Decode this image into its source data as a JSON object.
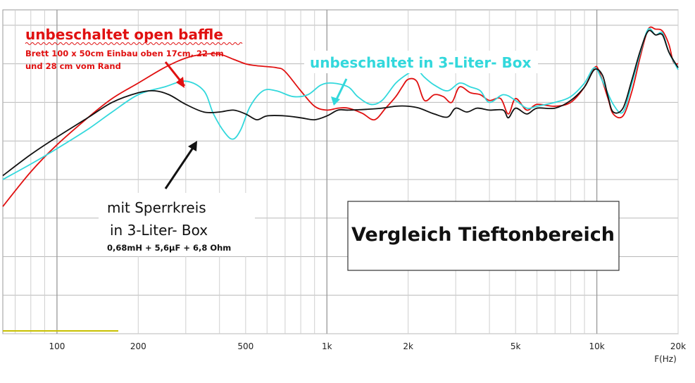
{
  "chart_data": {
    "type": "line",
    "title": "Vergleich Tieftonbereich",
    "xlabel": "F(Hz)",
    "x_scale": "log",
    "xlim": [
      63,
      20000
    ],
    "x_ticks": [
      {
        "value": 100,
        "label": "100"
      },
      {
        "value": 200,
        "label": "200"
      },
      {
        "value": 500,
        "label": "500"
      },
      {
        "value": 1000,
        "label": "1k"
      },
      {
        "value": 2000,
        "label": "2k"
      },
      {
        "value": 5000,
        "label": "5k"
      },
      {
        "value": 10000,
        "label": "10k"
      },
      {
        "value": 20000,
        "label": "20k"
      }
    ],
    "ylim": [
      0,
      8.4
    ],
    "grid": true,
    "series": [
      {
        "name": "unbeschaltet open baffle",
        "color": "#e01010",
        "points": [
          [
            63,
            3.3
          ],
          [
            80,
            4.2
          ],
          [
            100,
            4.9
          ],
          [
            130,
            5.6
          ],
          [
            160,
            6.1
          ],
          [
            200,
            6.5
          ],
          [
            250,
            6.9
          ],
          [
            300,
            7.15
          ],
          [
            350,
            7.25
          ],
          [
            400,
            7.25
          ],
          [
            450,
            7.12
          ],
          [
            500,
            7.0
          ],
          [
            550,
            6.95
          ],
          [
            650,
            6.9
          ],
          [
            700,
            6.8
          ],
          [
            800,
            6.3
          ],
          [
            900,
            5.9
          ],
          [
            1000,
            5.8
          ],
          [
            1100,
            5.85
          ],
          [
            1200,
            5.85
          ],
          [
            1350,
            5.72
          ],
          [
            1500,
            5.55
          ],
          [
            1650,
            5.85
          ],
          [
            1800,
            6.15
          ],
          [
            1900,
            6.4
          ],
          [
            2000,
            6.6
          ],
          [
            2150,
            6.55
          ],
          [
            2300,
            6.05
          ],
          [
            2500,
            6.2
          ],
          [
            2700,
            6.15
          ],
          [
            2900,
            6.0
          ],
          [
            3100,
            6.4
          ],
          [
            3400,
            6.25
          ],
          [
            3700,
            6.2
          ],
          [
            4000,
            6.05
          ],
          [
            4400,
            6.1
          ],
          [
            4700,
            5.7
          ],
          [
            5000,
            6.1
          ],
          [
            5500,
            5.8
          ],
          [
            6000,
            5.95
          ],
          [
            7000,
            5.9
          ],
          [
            8000,
            6.0
          ],
          [
            9000,
            6.4
          ],
          [
            9800,
            6.9
          ],
          [
            10200,
            6.8
          ],
          [
            11000,
            6.1
          ],
          [
            11500,
            5.7
          ],
          [
            12500,
            5.65
          ],
          [
            13500,
            6.3
          ],
          [
            14500,
            7.2
          ],
          [
            15500,
            7.9
          ],
          [
            16500,
            7.9
          ],
          [
            17500,
            7.85
          ],
          [
            18500,
            7.5
          ],
          [
            19200,
            7.05
          ],
          [
            20000,
            7.0
          ]
        ]
      },
      {
        "name": "unbeschaltet in 3-Liter- Box",
        "color": "#33d8dc",
        "points": [
          [
            63,
            4.0
          ],
          [
            80,
            4.4
          ],
          [
            100,
            4.8
          ],
          [
            130,
            5.3
          ],
          [
            160,
            5.75
          ],
          [
            200,
            6.2
          ],
          [
            250,
            6.4
          ],
          [
            300,
            6.55
          ],
          [
            350,
            6.3
          ],
          [
            380,
            5.7
          ],
          [
            420,
            5.2
          ],
          [
            450,
            5.05
          ],
          [
            480,
            5.3
          ],
          [
            520,
            5.9
          ],
          [
            580,
            6.3
          ],
          [
            650,
            6.3
          ],
          [
            750,
            6.15
          ],
          [
            850,
            6.2
          ],
          [
            950,
            6.45
          ],
          [
            1050,
            6.5
          ],
          [
            1200,
            6.4
          ],
          [
            1300,
            6.15
          ],
          [
            1450,
            5.95
          ],
          [
            1600,
            6.05
          ],
          [
            1800,
            6.5
          ],
          [
            2000,
            6.75
          ],
          [
            2150,
            6.85
          ],
          [
            2300,
            6.65
          ],
          [
            2500,
            6.45
          ],
          [
            2800,
            6.3
          ],
          [
            3100,
            6.5
          ],
          [
            3400,
            6.4
          ],
          [
            3700,
            6.3
          ],
          [
            4000,
            6.0
          ],
          [
            4500,
            6.2
          ],
          [
            5000,
            6.05
          ],
          [
            5500,
            5.85
          ],
          [
            6000,
            5.9
          ],
          [
            7000,
            6.0
          ],
          [
            8000,
            6.15
          ],
          [
            9000,
            6.5
          ],
          [
            9800,
            6.9
          ],
          [
            10500,
            6.55
          ],
          [
            11500,
            5.95
          ],
          [
            12500,
            5.75
          ],
          [
            13500,
            6.5
          ],
          [
            14500,
            7.3
          ],
          [
            15500,
            7.9
          ],
          [
            16500,
            7.75
          ],
          [
            17500,
            7.8
          ],
          [
            18500,
            7.3
          ],
          [
            20000,
            6.85
          ]
        ]
      },
      {
        "name": "mit Sperrkreis in 3-Liter- Box",
        "color": "#111111",
        "points": [
          [
            63,
            4.1
          ],
          [
            80,
            4.65
          ],
          [
            100,
            5.1
          ],
          [
            130,
            5.6
          ],
          [
            160,
            6.0
          ],
          [
            200,
            6.25
          ],
          [
            230,
            6.3
          ],
          [
            260,
            6.2
          ],
          [
            300,
            5.95
          ],
          [
            350,
            5.75
          ],
          [
            400,
            5.75
          ],
          [
            450,
            5.8
          ],
          [
            500,
            5.7
          ],
          [
            550,
            5.55
          ],
          [
            600,
            5.65
          ],
          [
            700,
            5.65
          ],
          [
            800,
            5.6
          ],
          [
            900,
            5.55
          ],
          [
            1000,
            5.65
          ],
          [
            1100,
            5.8
          ],
          [
            1200,
            5.8
          ],
          [
            1400,
            5.82
          ],
          [
            1600,
            5.85
          ],
          [
            1800,
            5.9
          ],
          [
            2000,
            5.9
          ],
          [
            2200,
            5.85
          ],
          [
            2500,
            5.7
          ],
          [
            2800,
            5.62
          ],
          [
            3000,
            5.85
          ],
          [
            3300,
            5.75
          ],
          [
            3600,
            5.85
          ],
          [
            4000,
            5.8
          ],
          [
            4500,
            5.8
          ],
          [
            4700,
            5.6
          ],
          [
            5000,
            5.85
          ],
          [
            5500,
            5.7
          ],
          [
            6000,
            5.85
          ],
          [
            7000,
            5.85
          ],
          [
            8000,
            6.05
          ],
          [
            9000,
            6.4
          ],
          [
            9800,
            6.85
          ],
          [
            10500,
            6.7
          ],
          [
            11000,
            6.15
          ],
          [
            11500,
            5.75
          ],
          [
            12500,
            5.85
          ],
          [
            13500,
            6.6
          ],
          [
            14500,
            7.35
          ],
          [
            15500,
            7.85
          ],
          [
            16500,
            7.75
          ],
          [
            17500,
            7.75
          ],
          [
            18500,
            7.3
          ],
          [
            20000,
            6.9
          ]
        ]
      }
    ],
    "annotations": {
      "open_baffle_title": "unbeschaltet open baffle",
      "open_baffle_line1": "Brett 100 x 50cm Einbau oben 17cm, 22 cm",
      "open_baffle_line2": "und 28 cm vom Rand",
      "box_title": "unbeschaltet in 3-Liter- Box",
      "filter_line1": "mit Sperrkreis",
      "filter_line2": "in 3-Liter- Box",
      "filter_line3": "0,68mH + 5,6µF + 6,8 Ohm"
    }
  }
}
